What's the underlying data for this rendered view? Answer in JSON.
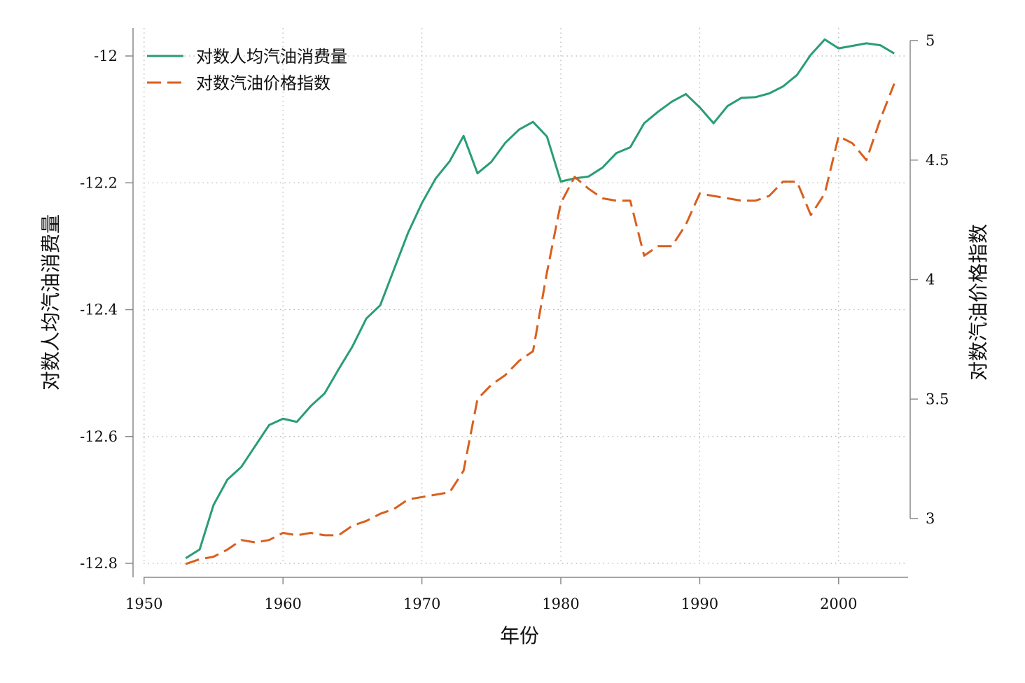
{
  "chart_data": {
    "type": "line",
    "xlabel": "年份",
    "ylabel_left": "对数人均汽油消费量",
    "ylabel_right": "对数汽油价格指数",
    "xlim": [
      1950,
      2005
    ],
    "ylim_left": [
      -12.8,
      -12.0
    ],
    "ylim_right": [
      2.8,
      5.0
    ],
    "x_ticks": [
      "1950",
      "1960",
      "1970",
      "1980",
      "1990",
      "2000"
    ],
    "y_left_ticks": [
      "-12",
      "-12.2",
      "-12.4",
      "-12.6",
      "-12.8"
    ],
    "y_right_ticks": [
      "5",
      "4.5",
      "4",
      "3.5",
      "3"
    ],
    "grid": true,
    "legend_position": "top-left",
    "series": [
      {
        "name": "对数人均汽油消费量",
        "axis": "left",
        "color": "#2a9d74",
        "style": "solid",
        "x": [
          1953,
          1954,
          1955,
          1956,
          1957,
          1958,
          1959,
          1960,
          1961,
          1962,
          1963,
          1964,
          1965,
          1966,
          1967,
          1968,
          1969,
          1970,
          1971,
          1972,
          1973,
          1974,
          1975,
          1976,
          1977,
          1978,
          1979,
          1980,
          1981,
          1982,
          1983,
          1984,
          1985,
          1986,
          1987,
          1988,
          1989,
          1990,
          1991,
          1992,
          1993,
          1994,
          1995,
          1996,
          1997,
          1998,
          1999,
          2000,
          2001,
          2002,
          2003,
          2004
        ],
        "y": [
          -12.792,
          -12.778,
          -12.708,
          -12.668,
          -12.648,
          -12.615,
          -12.582,
          -12.572,
          -12.577,
          -12.552,
          -12.532,
          -12.494,
          -12.458,
          -12.414,
          -12.393,
          -12.336,
          -12.279,
          -12.232,
          -12.193,
          -12.166,
          -12.126,
          -12.185,
          -12.167,
          -12.137,
          -12.116,
          -12.104,
          -12.127,
          -12.198,
          -12.193,
          -12.19,
          -12.176,
          -12.153,
          -12.144,
          -12.106,
          -12.088,
          -12.072,
          -12.06,
          -12.081,
          -12.106,
          -12.079,
          -12.066,
          -12.065,
          -12.059,
          -12.048,
          -12.03,
          -11.998,
          -11.974,
          -11.988,
          -11.984,
          -11.98,
          -11.983,
          -11.996
        ]
      },
      {
        "name": "对数汽油价格指数",
        "axis": "right",
        "color": "#d95f1e",
        "style": "dashed",
        "x": [
          1953,
          1954,
          1955,
          1956,
          1957,
          1958,
          1959,
          1960,
          1961,
          1962,
          1963,
          1964,
          1965,
          1966,
          1967,
          1968,
          1969,
          1970,
          1971,
          1972,
          1973,
          1974,
          1975,
          1976,
          1977,
          1978,
          1979,
          1980,
          1981,
          1982,
          1983,
          1984,
          1985,
          1986,
          1987,
          1988,
          1989,
          1990,
          1991,
          1992,
          1993,
          1994,
          1995,
          1996,
          1997,
          1998,
          1999,
          2000,
          2001,
          2002,
          2003,
          2004
        ],
        "y": [
          2.81,
          2.83,
          2.84,
          2.87,
          2.91,
          2.9,
          2.91,
          2.94,
          2.93,
          2.94,
          2.93,
          2.93,
          2.97,
          2.99,
          3.02,
          3.04,
          3.08,
          3.09,
          3.1,
          3.11,
          3.2,
          3.5,
          3.56,
          3.6,
          3.66,
          3.7,
          4.03,
          4.32,
          4.43,
          4.38,
          4.34,
          4.33,
          4.33,
          4.1,
          4.14,
          4.14,
          4.23,
          4.36,
          4.35,
          4.34,
          4.33,
          4.33,
          4.35,
          4.41,
          4.41,
          4.27,
          4.36,
          4.6,
          4.57,
          4.5,
          4.67,
          4.82
        ]
      }
    ]
  }
}
